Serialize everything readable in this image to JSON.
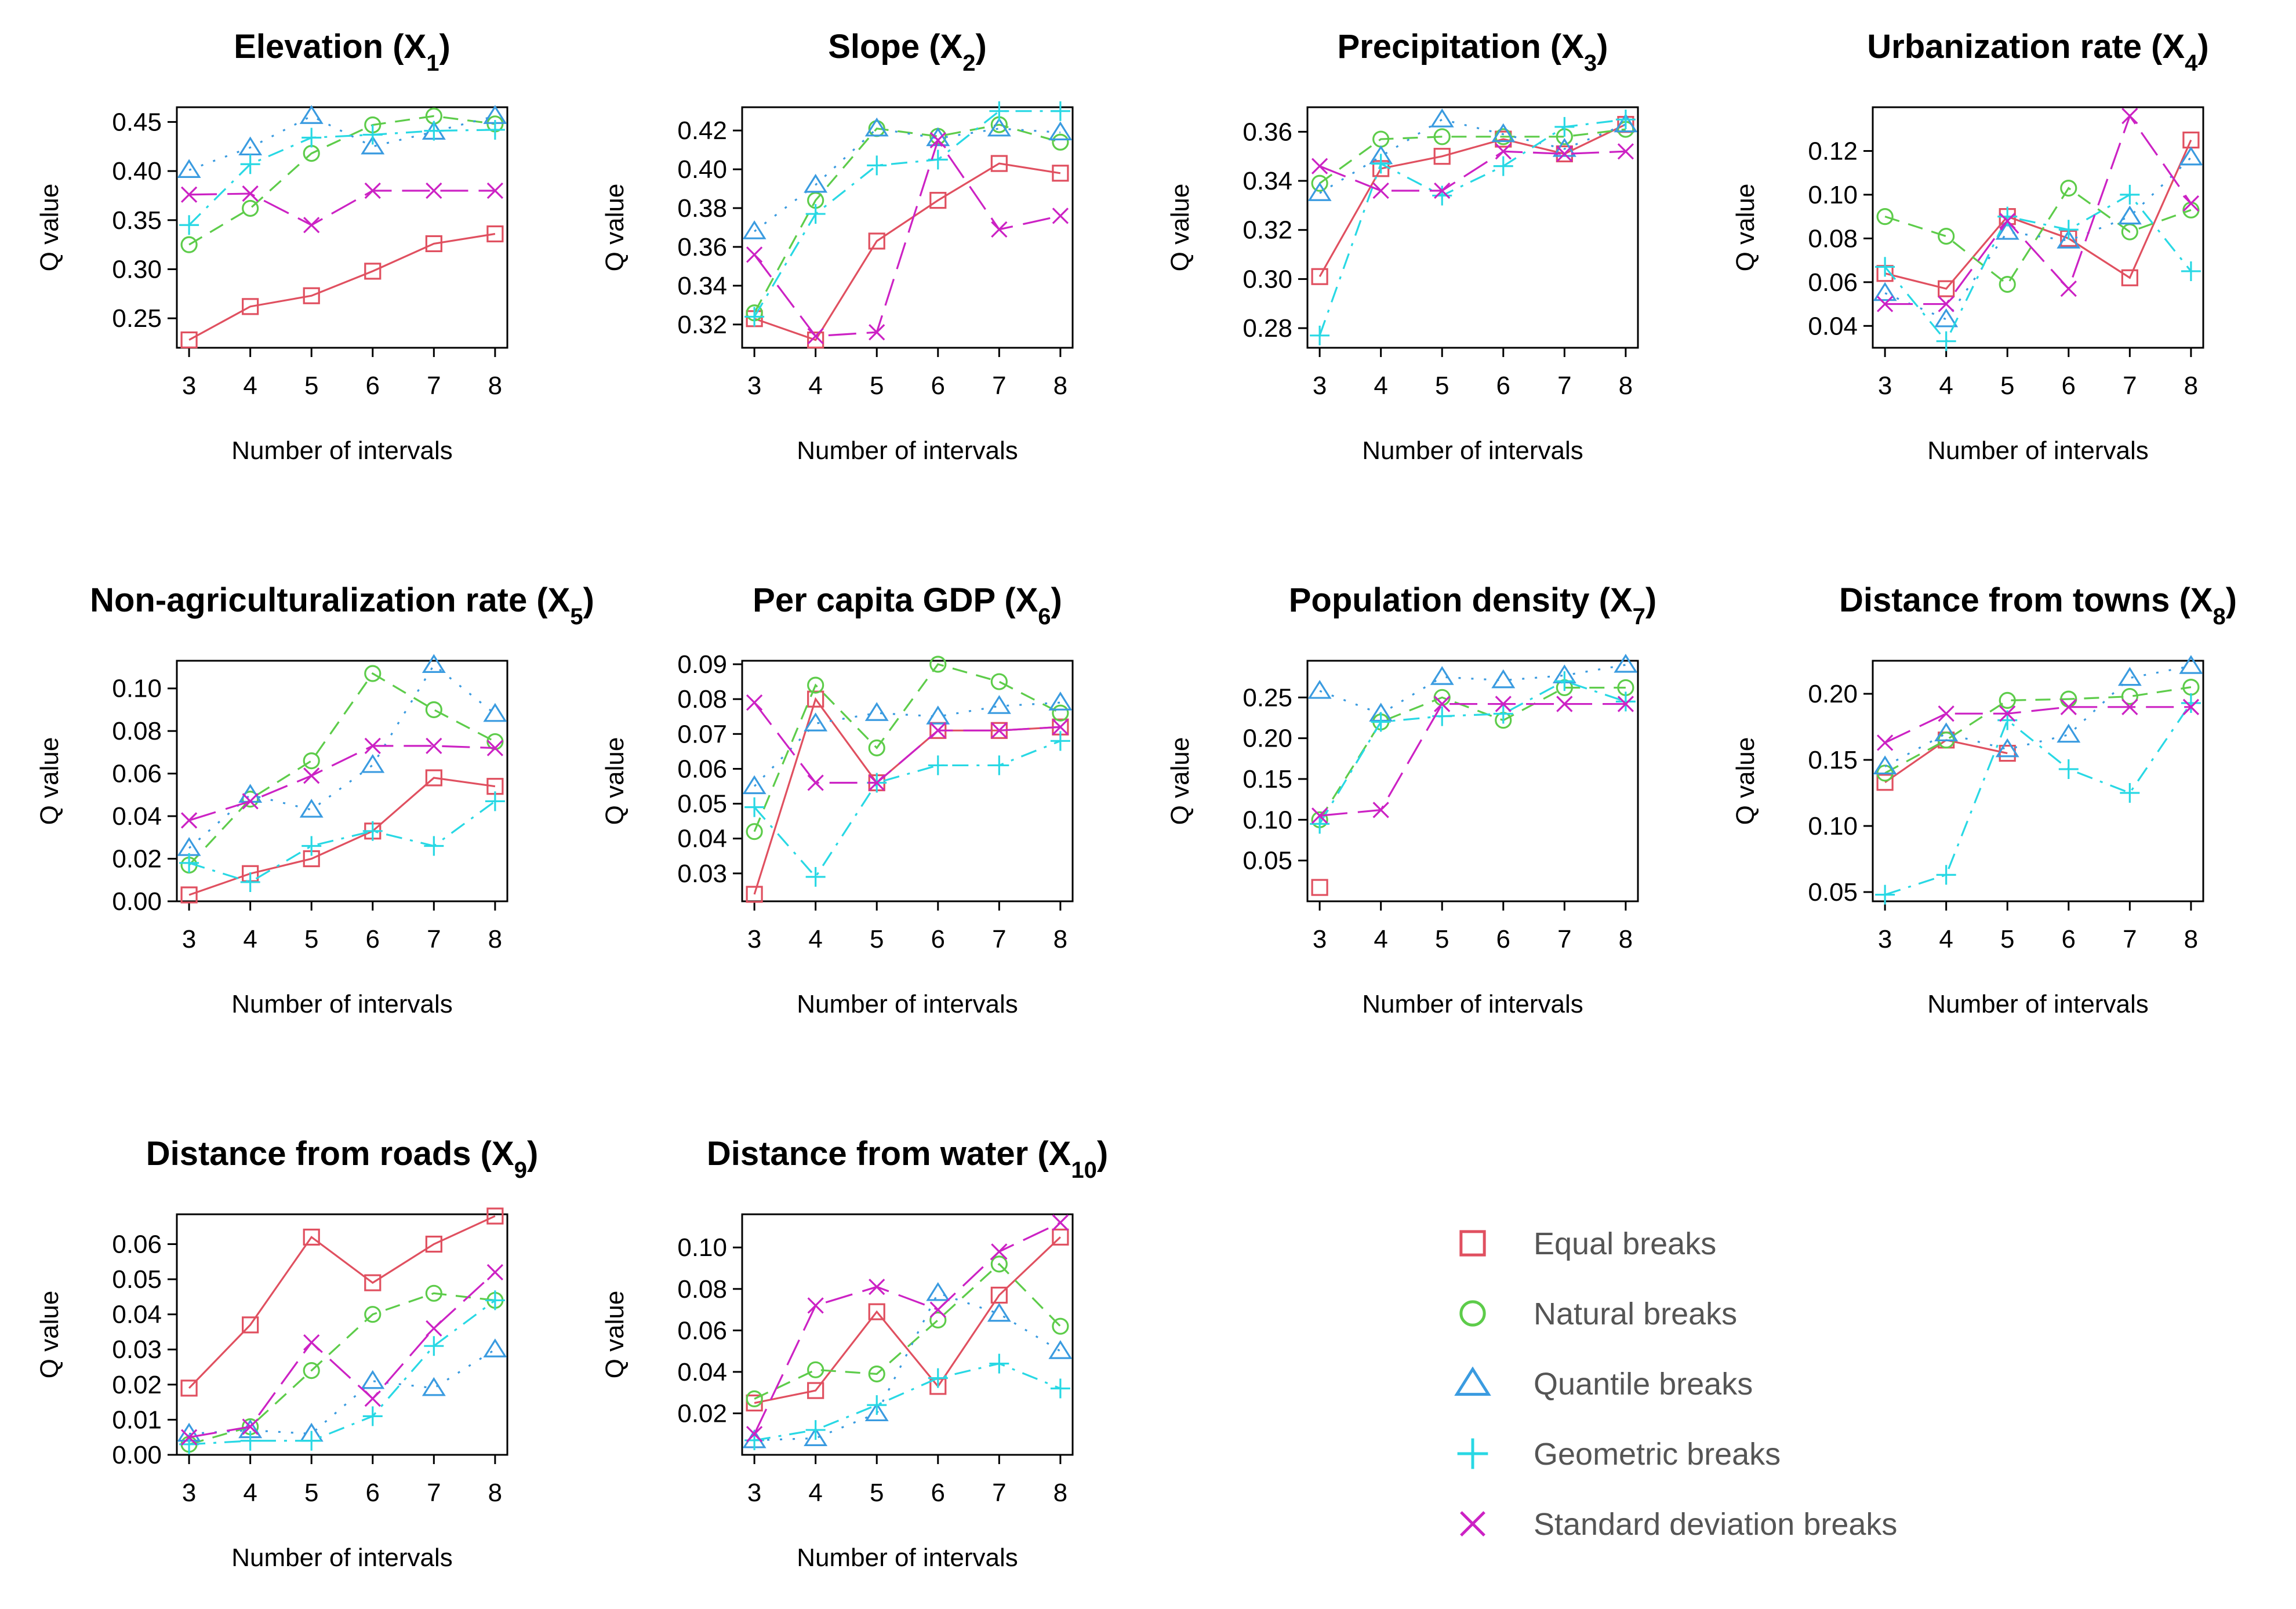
{
  "xlabel": "Number of intervals",
  "ylabel": "Q value",
  "series_names": [
    "Equal breaks",
    "Natural breaks",
    "Quantile breaks",
    "Geometric breaks",
    "Standard deviation breaks"
  ],
  "series_colors": [
    "#e05060",
    "#5dcc4a",
    "#3a9be0",
    "#28d8e4",
    "#cc22c4"
  ],
  "series_markers": [
    "square",
    "circle",
    "triangle",
    "plus",
    "cross"
  ],
  "legend": {
    "entries": [
      {
        "label": "Equal breaks"
      },
      {
        "label": "Natural breaks"
      },
      {
        "label": "Quantile breaks"
      },
      {
        "label": "Geometric breaks"
      },
      {
        "label": "Standard deviation breaks"
      }
    ]
  },
  "chart_data": [
    {
      "type": "line",
      "title": "Elevation (X",
      "subscript": "1",
      "title_tail": ")",
      "xlabel": "Number of intervals",
      "ylabel": "Q value",
      "x": [
        3,
        4,
        5,
        6,
        7,
        8
      ],
      "ylim": [
        0.22,
        0.465
      ],
      "yticks": [
        "0.25",
        "0.30",
        "0.35",
        "0.40",
        "0.45"
      ],
      "series": [
        {
          "name": "Equal breaks",
          "values": [
            0.228,
            0.262,
            0.273,
            0.298,
            0.326,
            0.336
          ]
        },
        {
          "name": "Natural breaks",
          "values": [
            0.325,
            0.362,
            0.418,
            0.447,
            0.456,
            0.448
          ]
        },
        {
          "name": "Quantile breaks",
          "values": [
            0.401,
            0.424,
            0.456,
            0.425,
            0.44,
            0.456
          ]
        },
        {
          "name": "Geometric breaks",
          "values": [
            0.345,
            0.407,
            0.434,
            0.437,
            0.441,
            0.442
          ]
        },
        {
          "name": "Standard deviation breaks",
          "values": [
            0.376,
            0.377,
            0.345,
            0.38,
            0.38,
            0.38
          ]
        }
      ]
    },
    {
      "type": "line",
      "title": "Slope (X",
      "subscript": "2",
      "title_tail": ")",
      "xlabel": "Number of intervals",
      "ylabel": "Q value",
      "x": [
        3,
        4,
        5,
        6,
        7,
        8
      ],
      "ylim": [
        0.308,
        0.432
      ],
      "yticks": [
        "0.32",
        "0.34",
        "0.36",
        "0.38",
        "0.40",
        "0.42"
      ],
      "series": [
        {
          "name": "Equal breaks",
          "values": [
            0.323,
            0.312,
            0.363,
            0.384,
            0.403,
            0.398
          ]
        },
        {
          "name": "Natural breaks",
          "values": [
            0.326,
            0.384,
            0.421,
            0.417,
            0.423,
            0.414
          ]
        },
        {
          "name": "Quantile breaks",
          "values": [
            0.368,
            0.392,
            0.421,
            0.416,
            0.421,
            0.419
          ]
        },
        {
          "name": "Geometric breaks",
          "values": [
            0.324,
            0.377,
            0.402,
            0.405,
            0.43,
            0.43
          ]
        },
        {
          "name": "Standard deviation breaks",
          "values": [
            0.356,
            0.314,
            0.316,
            0.415,
            0.369,
            0.376
          ]
        }
      ]
    },
    {
      "type": "line",
      "title": "Precipitation (X",
      "subscript": "3",
      "title_tail": ")",
      "xlabel": "Number of intervals",
      "ylabel": "Q value",
      "x": [
        3,
        4,
        5,
        6,
        7,
        8
      ],
      "ylim": [
        0.272,
        0.37
      ],
      "yticks": [
        "0.28",
        "0.30",
        "0.32",
        "0.34",
        "0.36"
      ],
      "series": [
        {
          "name": "Equal breaks",
          "values": [
            0.301,
            0.345,
            0.35,
            0.357,
            0.351,
            0.363
          ]
        },
        {
          "name": "Natural breaks",
          "values": [
            0.339,
            0.357,
            0.358,
            0.358,
            0.358,
            0.361
          ]
        },
        {
          "name": "Quantile breaks",
          "values": [
            0.335,
            0.35,
            0.365,
            0.359,
            0.353,
            0.363
          ]
        },
        {
          "name": "Geometric breaks",
          "values": [
            0.277,
            0.347,
            0.334,
            0.346,
            0.362,
            0.365
          ]
        },
        {
          "name": "Standard deviation breaks",
          "values": [
            0.346,
            0.336,
            0.336,
            0.352,
            0.351,
            0.352
          ]
        }
      ]
    },
    {
      "type": "line",
      "title": "Urbanization rate (X",
      "subscript": "4",
      "title_tail": ")",
      "xlabel": "Number of intervals",
      "ylabel": "Q value",
      "x": [
        3,
        4,
        5,
        6,
        7,
        8
      ],
      "ylim": [
        0.03,
        0.14
      ],
      "yticks": [
        "0.04",
        "0.06",
        "0.08",
        "0.10",
        "0.12"
      ],
      "series": [
        {
          "name": "Equal breaks",
          "values": [
            0.064,
            0.057,
            0.09,
            0.08,
            0.062,
            0.125
          ]
        },
        {
          "name": "Natural breaks",
          "values": [
            0.09,
            0.081,
            0.059,
            0.103,
            0.083,
            0.093
          ]
        },
        {
          "name": "Quantile breaks",
          "values": [
            0.055,
            0.043,
            0.083,
            0.079,
            0.09,
            0.117
          ]
        },
        {
          "name": "Geometric breaks",
          "values": [
            0.067,
            0.033,
            0.09,
            0.084,
            0.1,
            0.065
          ]
        },
        {
          "name": "Standard deviation breaks",
          "values": [
            0.05,
            0.05,
            0.088,
            0.057,
            0.136,
            0.096
          ]
        }
      ]
    },
    {
      "type": "line",
      "title": "Non-agriculturalization rate (X",
      "subscript": "5",
      "title_tail": ")",
      "xlabel": "Number of intervals",
      "ylabel": "Q value",
      "x": [
        3,
        4,
        5,
        6,
        7,
        8
      ],
      "ylim": [
        0.0,
        0.113
      ],
      "yticks": [
        "0.00",
        "0.02",
        "0.04",
        "0.06",
        "0.08",
        "0.10"
      ],
      "series": [
        {
          "name": "Equal breaks",
          "values": [
            0.003,
            0.013,
            0.02,
            0.033,
            0.058,
            0.054
          ]
        },
        {
          "name": "Natural breaks",
          "values": [
            0.017,
            0.048,
            0.066,
            0.107,
            0.09,
            0.075
          ]
        },
        {
          "name": "Quantile breaks",
          "values": [
            0.025,
            0.05,
            0.043,
            0.064,
            0.111,
            0.088
          ]
        },
        {
          "name": "Geometric breaks",
          "values": [
            0.018,
            0.009,
            0.026,
            0.033,
            0.026,
            0.047
          ]
        },
        {
          "name": "Standard deviation breaks",
          "values": [
            0.038,
            0.047,
            0.059,
            0.073,
            0.073,
            0.072
          ]
        }
      ]
    },
    {
      "type": "line",
      "title": "Per capita GDP (X",
      "subscript": "6",
      "title_tail": ")",
      "xlabel": "Number of intervals",
      "ylabel": "Q value",
      "x": [
        3,
        4,
        5,
        6,
        7,
        8
      ],
      "ylim": [
        0.022,
        0.091
      ],
      "yticks": [
        "0.03",
        "0.04",
        "0.05",
        "0.06",
        "0.07",
        "0.08",
        "0.09"
      ],
      "series": [
        {
          "name": "Equal breaks",
          "values": [
            0.024,
            0.08,
            0.056,
            0.071,
            0.071,
            0.072
          ]
        },
        {
          "name": "Natural breaks",
          "values": [
            0.042,
            0.084,
            0.066,
            0.09,
            0.085,
            0.076
          ]
        },
        {
          "name": "Quantile breaks",
          "values": [
            0.055,
            0.073,
            0.076,
            0.075,
            0.078,
            0.079
          ]
        },
        {
          "name": "Geometric breaks",
          "values": [
            0.049,
            0.029,
            0.056,
            0.061,
            0.061,
            0.068
          ]
        },
        {
          "name": "Standard deviation breaks",
          "values": [
            0.079,
            0.056,
            0.056,
            0.071,
            0.071,
            0.072
          ]
        }
      ]
    },
    {
      "type": "line",
      "title": "Population density (X",
      "subscript": "7",
      "title_tail": ")",
      "xlabel": "Number of intervals",
      "ylabel": "Q value",
      "x": [
        3,
        4,
        5,
        6,
        7,
        8
      ],
      "ylim": [
        0.0,
        0.295
      ],
      "yticks": [
        "0.05",
        "0.10",
        "0.15",
        "0.20",
        "0.25"
      ],
      "series": [
        {
          "name": "Equal breaks",
          "values": [
            0.017,
            null,
            null,
            null,
            null,
            null
          ]
        },
        {
          "name": "Natural breaks",
          "values": [
            0.1,
            0.22,
            0.25,
            0.222,
            0.262,
            0.262
          ]
        },
        {
          "name": "Quantile breaks",
          "values": [
            0.258,
            0.23,
            0.275,
            0.271,
            0.277,
            0.29
          ]
        },
        {
          "name": "Geometric breaks",
          "values": [
            0.095,
            0.22,
            0.227,
            0.23,
            0.27,
            0.245
          ]
        },
        {
          "name": "Standard deviation breaks",
          "values": [
            0.105,
            0.112,
            0.242,
            0.242,
            0.242,
            0.242
          ]
        }
      ]
    },
    {
      "type": "line",
      "title": "Distance from towns (X",
      "subscript": "8",
      "title_tail": ")",
      "xlabel": "Number of intervals",
      "ylabel": "Q value",
      "x": [
        3,
        4,
        5,
        6,
        7,
        8
      ],
      "ylim": [
        0.043,
        0.225
      ],
      "yticks": [
        "0.05",
        "0.10",
        "0.15",
        "0.20"
      ],
      "series": [
        {
          "name": "Equal breaks",
          "values": [
            0.133,
            0.165,
            0.155,
            null,
            null,
            null
          ]
        },
        {
          "name": "Natural breaks",
          "values": [
            0.14,
            0.165,
            0.195,
            0.196,
            0.198,
            0.205
          ]
        },
        {
          "name": "Quantile breaks",
          "values": [
            0.145,
            0.17,
            0.158,
            0.169,
            0.212,
            0.221
          ]
        },
        {
          "name": "Geometric breaks",
          "values": [
            0.048,
            0.063,
            0.18,
            0.143,
            0.125,
            0.193
          ]
        },
        {
          "name": "Standard deviation breaks",
          "values": [
            0.163,
            0.185,
            0.185,
            0.19,
            0.19,
            0.19
          ]
        }
      ]
    },
    {
      "type": "line",
      "title": "Distance from roads (X",
      "subscript": "9",
      "title_tail": ")",
      "xlabel": "Number of intervals",
      "ylabel": "Q value",
      "x": [
        3,
        4,
        5,
        6,
        7,
        8
      ],
      "ylim": [
        0.0,
        0.0685
      ],
      "yticks": [
        "0.00",
        "0.01",
        "0.02",
        "0.03",
        "0.04",
        "0.05",
        "0.06"
      ],
      "series": [
        {
          "name": "Equal breaks",
          "values": [
            0.019,
            0.037,
            0.062,
            0.049,
            0.06,
            0.068
          ]
        },
        {
          "name": "Natural breaks",
          "values": [
            0.003,
            0.008,
            0.024,
            0.04,
            0.046,
            0.044
          ]
        },
        {
          "name": "Quantile breaks",
          "values": [
            0.006,
            0.007,
            0.006,
            0.021,
            0.019,
            0.03
          ]
        },
        {
          "name": "Geometric breaks",
          "values": [
            0.003,
            0.004,
            0.004,
            0.011,
            0.031,
            0.044
          ]
        },
        {
          "name": "Standard deviation breaks",
          "values": [
            0.005,
            0.008,
            0.032,
            0.016,
            0.036,
            0.052
          ]
        }
      ]
    },
    {
      "type": "line",
      "title": "Distance from water (X",
      "subscript": "10",
      "title_tail": ")",
      "xlabel": "Number of intervals",
      "ylabel": "Q value",
      "x": [
        3,
        4,
        5,
        6,
        7,
        8
      ],
      "ylim": [
        0.0,
        0.116
      ],
      "yticks": [
        "0.02",
        "0.04",
        "0.06",
        "0.08",
        "0.10"
      ],
      "series": [
        {
          "name": "Equal breaks",
          "values": [
            0.025,
            0.031,
            0.069,
            0.033,
            0.077,
            0.105
          ]
        },
        {
          "name": "Natural breaks",
          "values": [
            0.027,
            0.041,
            0.039,
            0.065,
            0.092,
            0.062
          ]
        },
        {
          "name": "Quantile breaks",
          "values": [
            0.007,
            0.008,
            0.02,
            0.078,
            0.068,
            0.05
          ]
        },
        {
          "name": "Geometric breaks",
          "values": [
            0.007,
            0.012,
            0.024,
            0.037,
            0.044,
            0.032
          ]
        },
        {
          "name": "Standard deviation breaks",
          "values": [
            0.01,
            0.072,
            0.081,
            0.07,
            0.098,
            0.112
          ]
        }
      ]
    }
  ]
}
